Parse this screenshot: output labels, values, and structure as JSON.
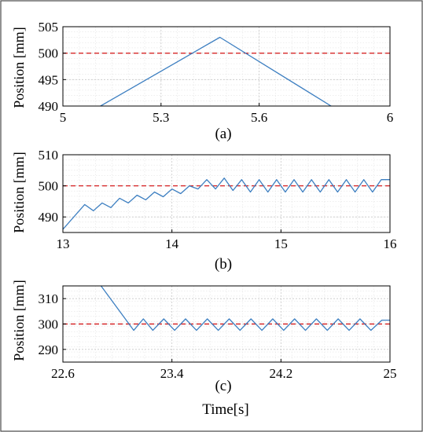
{
  "chart_data": [
    {
      "type": "line",
      "caption": "(a)",
      "ylabel": "Position [mm]",
      "xlabel": "",
      "xlim": [
        5,
        6
      ],
      "ylim": [
        490,
        505
      ],
      "xticks": [
        5,
        5.3,
        5.6,
        6
      ],
      "xtick_labels": [
        "5",
        "5.3",
        "5.6",
        "6"
      ],
      "yticks": [
        490,
        495,
        500,
        505
      ],
      "ytick_labels": [
        "490",
        "495",
        "500",
        "505"
      ],
      "grid": true,
      "reference": 500,
      "series": [
        {
          "color": "#3d7fc1",
          "x": [
            5.115,
            5.48,
            5.82
          ],
          "y": [
            490,
            503,
            490
          ]
        }
      ]
    },
    {
      "type": "line",
      "caption": "(b)",
      "ylabel": "Position [mm]",
      "xlabel": "",
      "xlim": [
        13,
        16
      ],
      "ylim": [
        485,
        510
      ],
      "xticks": [
        13,
        14,
        15,
        16
      ],
      "xtick_labels": [
        "13",
        "14",
        "15",
        "16"
      ],
      "yticks": [
        490,
        500,
        510
      ],
      "ytick_labels": [
        "490",
        "500",
        "510"
      ],
      "grid": true,
      "reference": 500,
      "series": [
        {
          "color": "#3d7fc1",
          "x": [
            13,
            13.2,
            13.28,
            13.36,
            13.44,
            13.52,
            13.6,
            13.68,
            13.76,
            13.84,
            13.92,
            14.0,
            14.08,
            14.16,
            14.24,
            14.32,
            14.4,
            14.48,
            14.56,
            14.64,
            14.72,
            14.8,
            14.88,
            14.96,
            15.04,
            15.12,
            15.2,
            15.28,
            15.36,
            15.44,
            15.52,
            15.6,
            15.68,
            15.76,
            15.84,
            15.92,
            16.0
          ],
          "y": [
            486,
            494,
            492,
            494.5,
            493,
            496,
            494.5,
            497,
            495.5,
            498,
            496.5,
            499,
            497.5,
            500,
            499,
            502,
            499,
            502.5,
            498.5,
            502,
            498,
            502,
            498,
            502,
            498,
            502,
            498,
            502,
            498,
            502,
            498,
            502,
            498,
            502,
            498,
            502,
            502
          ]
        }
      ]
    },
    {
      "type": "line",
      "caption": "(c)",
      "ylabel": "Position [mm]",
      "xlabel": "Time[s]",
      "xlim": [
        22.6,
        25
      ],
      "ylim": [
        285,
        315
      ],
      "xticks": [
        22.6,
        23.4,
        24.2,
        25
      ],
      "xtick_labels": [
        "22.6",
        "23.4",
        "24.2",
        "25"
      ],
      "yticks": [
        290,
        300,
        310
      ],
      "ytick_labels": [
        "290",
        "300",
        "310"
      ],
      "grid": true,
      "reference": 300,
      "series": [
        {
          "color": "#3d7fc1",
          "x": [
            22.88,
            23.12,
            23.19,
            23.26,
            23.34,
            23.42,
            23.5,
            23.58,
            23.66,
            23.74,
            23.82,
            23.9,
            23.98,
            24.06,
            24.14,
            24.22,
            24.3,
            24.38,
            24.46,
            24.54,
            24.62,
            24.7,
            24.78,
            24.86,
            24.94,
            25.0
          ],
          "y": [
            315,
            297.5,
            302,
            297.5,
            302,
            297.5,
            302,
            297.5,
            302,
            297.5,
            302,
            297.5,
            302,
            297.5,
            302,
            297.5,
            302,
            297.5,
            302,
            297.5,
            302,
            297.5,
            302,
            297.5,
            301.5,
            301.5
          ]
        }
      ]
    }
  ]
}
